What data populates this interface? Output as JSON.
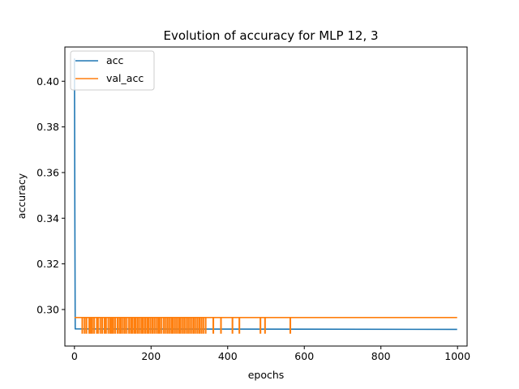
{
  "chart_data": {
    "type": "line",
    "title": "Evolution of accuracy for MLP 12, 3",
    "xlabel": "epochs",
    "ylabel": "accuracy",
    "xlim": [
      -25,
      1025
    ],
    "ylim": [
      0.284,
      0.415
    ],
    "xticks": [
      0,
      200,
      400,
      600,
      800,
      1000
    ],
    "yticks": [
      0.3,
      0.32,
      0.34,
      0.36,
      0.38,
      0.4
    ],
    "xtick_labels": [
      "0",
      "200",
      "400",
      "600",
      "800",
      "1000"
    ],
    "ytick_labels": [
      "0.30",
      "0.32",
      "0.34",
      "0.36",
      "0.38",
      "0.40"
    ],
    "grid": false,
    "legend": {
      "position": "top-left"
    },
    "series": [
      {
        "name": "acc",
        "color": "#1f77b4",
        "x": [
          0,
          1,
          2,
          3,
          999
        ],
        "y": [
          0.41,
          0.345,
          0.2915,
          0.2915,
          0.2913
        ]
      },
      {
        "name": "val_acc",
        "color": "#ff7f0e",
        "baseline": 0.2965,
        "dip": 0.2897,
        "dip_epochs": [
          20,
          26,
          31,
          38,
          42,
          46,
          51,
          58,
          61,
          67,
          72,
          78,
          82,
          88,
          93,
          97,
          101,
          106,
          112,
          117,
          121,
          126,
          131,
          136,
          142,
          147,
          151,
          156,
          160,
          165,
          170,
          175,
          179,
          184,
          189,
          193,
          198,
          203,
          208,
          213,
          218,
          222,
          227,
          233,
          238,
          243,
          248,
          253,
          257,
          262,
          267,
          272,
          276,
          281,
          286,
          291,
          296,
          301,
          306,
          311,
          316,
          321,
          326,
          331,
          336,
          342,
          362,
          382,
          412,
          430,
          485,
          497,
          563
        ],
        "x_range": [
          0,
          999
        ]
      }
    ]
  }
}
